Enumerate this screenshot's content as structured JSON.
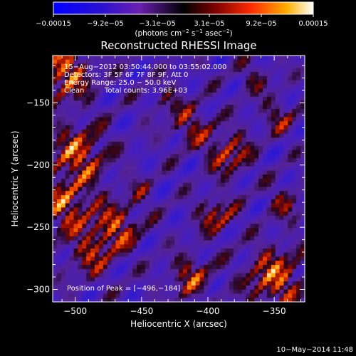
{
  "chart_data": {
    "type": "heatmap",
    "title": "Reconstructed RHESSI Image",
    "xlabel": "Heliocentric X (arcsec)",
    "ylabel": "Heliocentric Y (arcsec)",
    "x_ticks": [
      -500,
      -450,
      -400,
      -350
    ],
    "y_ticks": [
      -150,
      -200,
      -250,
      -300
    ],
    "x_tick_labels": [
      "−500",
      "−450",
      "−400",
      "−350"
    ],
    "y_tick_labels": [
      "−150",
      "−200",
      "−250",
      "−300"
    ],
    "xlim": [
      -517,
      -327
    ],
    "ylim": [
      -310,
      -112
    ],
    "colorbar": {
      "ticks": [
        "−0.00015",
        "−9.2e−05",
        "−3.1e−05",
        "3.1e−05",
        "9.2e−05",
        "0.00015"
      ],
      "range": [
        -0.00015,
        0.00015
      ],
      "units_prefix": "(photons cm",
      "units_sup1": "−2",
      "units_mid": " s",
      "units_sup2": "−1",
      "units_mid2": " asec",
      "units_sup3": "−2",
      "units_suffix": ")",
      "colors": [
        "#0000ff",
        "#4a00cc",
        "#7a22aa",
        "#000000",
        "#8a0000",
        "#ff3000",
        "#ffaa00",
        "#ffffff"
      ]
    },
    "annotations": {
      "time_range": "15−Aug−2012 03:50:44.000 to 03:55:02.000",
      "detectors": "Detectors: 3F 5F 6F 7F 8F 9F, Att 0",
      "energy": "Energy Range: 25.0 − 50.0 keV",
      "clean": "Clean",
      "counts": "Total counts: 3.96E+03",
      "peak": "Position of Peak = [−496,−184]"
    },
    "peak_position": [
      -496,
      -184
    ],
    "total_counts": 3960,
    "energy_range_kev": [
      25.0,
      50.0
    ]
  },
  "footer": {
    "timestamp": "10−May−2014 11:48"
  }
}
